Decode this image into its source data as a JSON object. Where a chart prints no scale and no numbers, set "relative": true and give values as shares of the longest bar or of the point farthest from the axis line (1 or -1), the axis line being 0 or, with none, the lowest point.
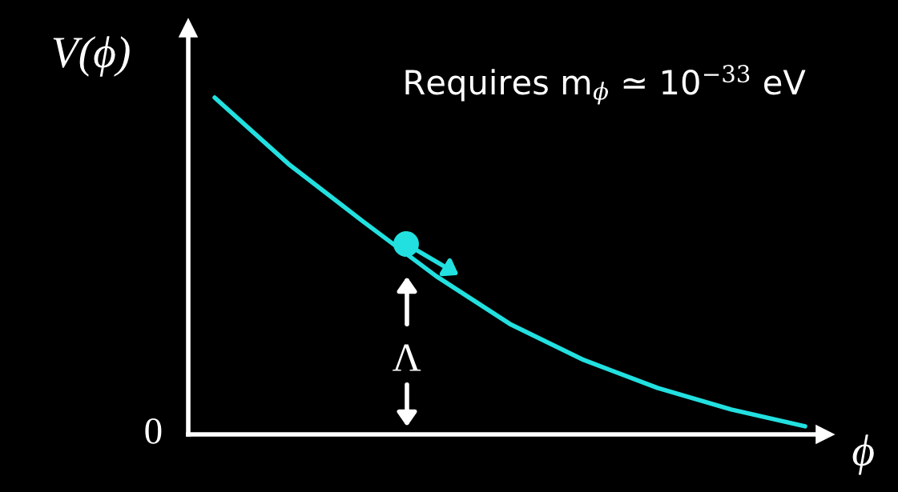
{
  "chart_data": {
    "type": "line",
    "relative": true,
    "xlabel": "ϕ",
    "ylabel": "V(ϕ)",
    "categories": [
      null,
      null,
      null,
      null,
      null,
      null,
      null,
      null,
      null
    ],
    "series": [
      {
        "color": "#22e0e0",
        "values": [
          1.0,
          0.803,
          0.634,
          0.47,
          0.328,
          0.221,
          0.138,
          0.074,
          0.024
        ]
      }
    ],
    "annotations": [
      "Requires m$_{ϕ}$ ≃ 10$^{−33}$ eV",
      "Λ",
      "0"
    ],
    "legend": false,
    "marker": "none",
    "line_style": "solid"
  }
}
